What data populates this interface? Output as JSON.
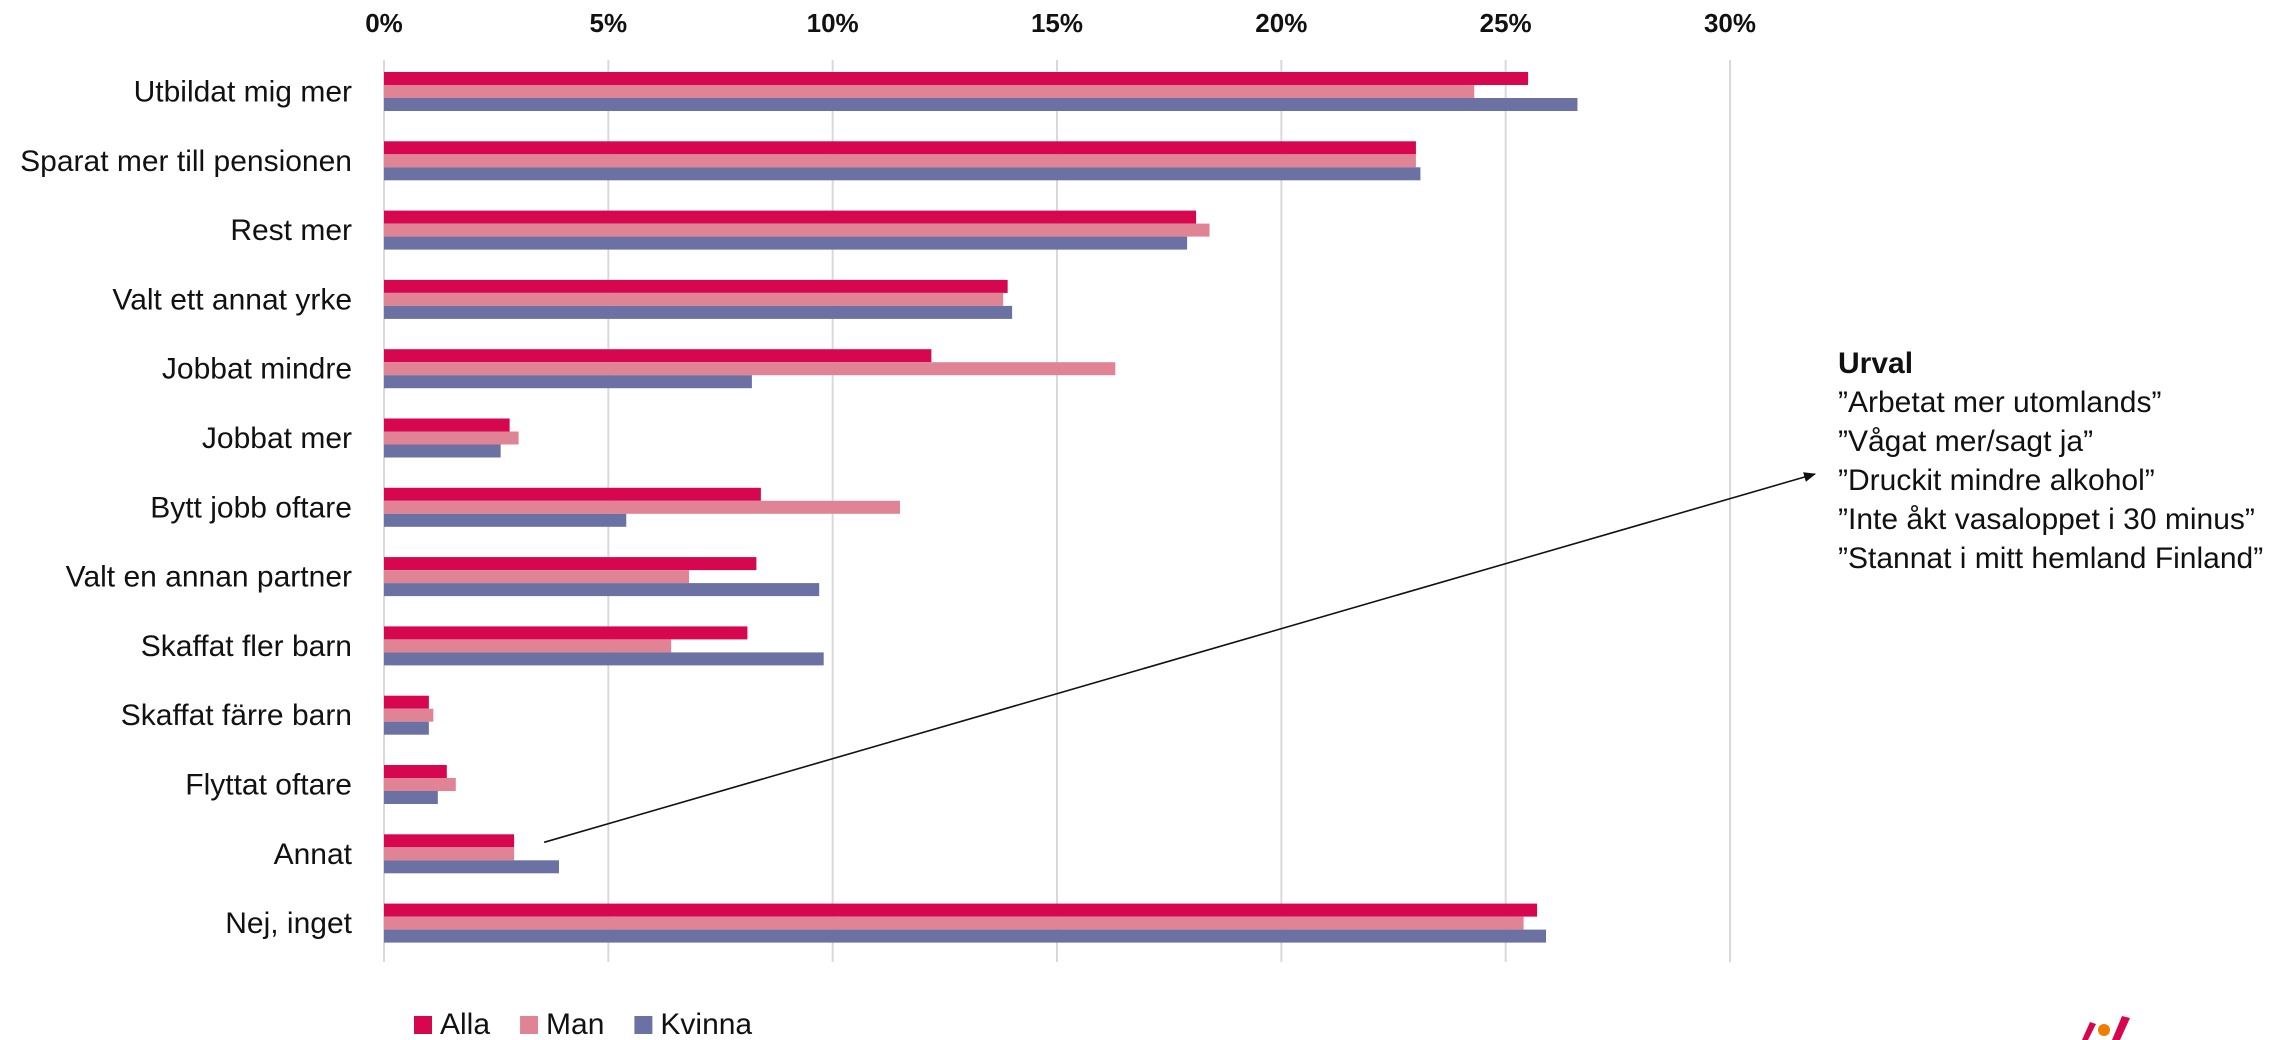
{
  "chart_data": {
    "type": "bar",
    "orientation": "horizontal",
    "categories": [
      "Utbildat mig mer",
      "Sparat mer till pensionen",
      "Rest mer",
      "Valt ett annat yrke",
      "Jobbat mindre",
      "Jobbat mer",
      "Bytt jobb oftare",
      "Valt en annan partner",
      "Skaffat fler barn",
      "Skaffat färre barn",
      "Flyttat oftare",
      "Annat",
      "Nej, inget"
    ],
    "series": [
      {
        "name": "Alla",
        "color": "#d6064f",
        "values": [
          25.5,
          23.0,
          18.1,
          13.9,
          12.2,
          2.8,
          8.4,
          8.3,
          8.1,
          1.0,
          1.4,
          2.9,
          25.7
        ]
      },
      {
        "name": "Man",
        "color": "#e08495",
        "values": [
          24.3,
          23.0,
          18.4,
          13.8,
          16.3,
          3.0,
          11.5,
          6.8,
          6.4,
          1.1,
          1.6,
          2.9,
          25.4
        ]
      },
      {
        "name": "Kvinna",
        "color": "#6c71a3",
        "values": [
          26.6,
          23.1,
          17.9,
          14.0,
          8.2,
          2.6,
          5.4,
          9.7,
          9.8,
          1.0,
          1.2,
          3.9,
          25.9
        ]
      }
    ],
    "x_ticks": [
      "0%",
      "5%",
      "10%",
      "15%",
      "20%",
      "25%",
      "30%"
    ],
    "xlim": [
      0,
      30
    ],
    "x_unit": "%",
    "xlabel": "",
    "ylabel": "",
    "grid": true,
    "legend_position": "bottom-left",
    "legend": [
      {
        "label": "Alla",
        "color": "#d6064f"
      },
      {
        "label": "Man",
        "color": "#e08495"
      },
      {
        "label": "Kvinna",
        "color": "#6c71a3"
      }
    ],
    "annotation": {
      "title": "Urval",
      "lines": [
        "”Arbetat mer utomlands”",
        "”Vågat mer/sagt ja”",
        "”Druckit mindre alkohol”",
        "”Inte åkt vasaloppet i 30 minus”",
        "”Stannat i mitt hemland Finland”"
      ],
      "points_to_category": "Annat"
    },
    "axis_color": "#d9d9d9",
    "logo_colors": [
      "#d6064f",
      "#f07d00"
    ]
  }
}
